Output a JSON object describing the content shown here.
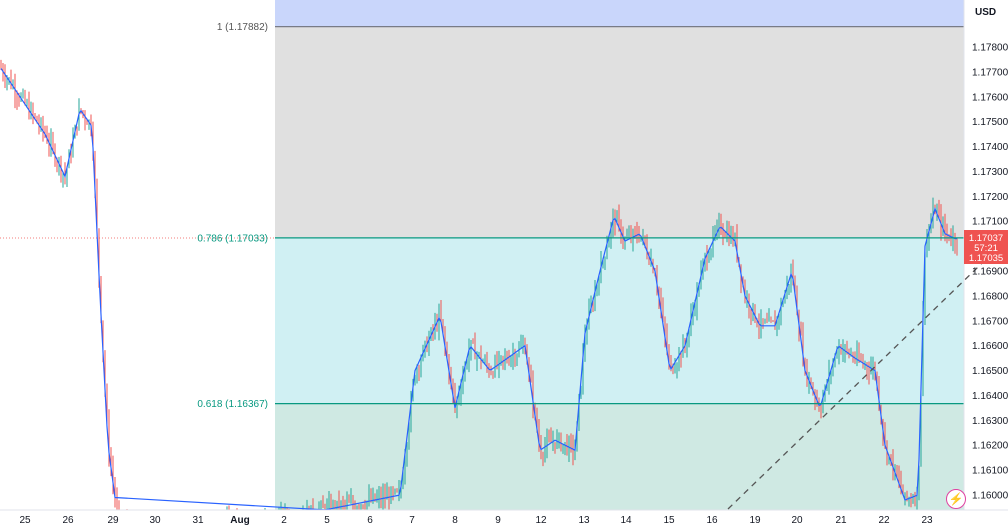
{
  "chart_data": {
    "type": "candlestick",
    "currency": "USD",
    "y_axis_ticks": [
      "1.17800",
      "1.17700",
      "1.17600",
      "1.17500",
      "1.17400",
      "1.17300",
      "1.17200",
      "1.17100",
      "1.16900",
      "1.16800",
      "1.16700",
      "1.16600",
      "1.16500",
      "1.16400",
      "1.16300",
      "1.16200",
      "1.16100",
      "1.16000"
    ],
    "x_axis_ticks": [
      "25",
      "26",
      "29",
      "30",
      "31",
      "Aug",
      "2",
      "5",
      "6",
      "7",
      "8",
      "9",
      "12",
      "13",
      "14",
      "15",
      "16",
      "19",
      "20",
      "21",
      "22",
      "23"
    ],
    "ylim": [
      1.1596,
      1.1796
    ],
    "fib_levels": [
      {
        "label": "1 (1.17882)",
        "value": 1.17882
      },
      {
        "label": "0.786 (1.17033)",
        "value": 1.17033
      },
      {
        "label": "0.618 (1.16367)",
        "value": 1.16367
      }
    ],
    "last_price": "1.17037",
    "countdown": "57:21",
    "bid_price": "1.17035",
    "colors": {
      "up": "#26a69a",
      "down": "#ef5350",
      "ma": "#2962ff",
      "fib_line": "#089981",
      "zone_top": "#c9d6fb",
      "zone_grey": "#e0e0e0",
      "zone_cyan": "#d0f0f3",
      "zone_green": "#cfe9e3"
    }
  },
  "bolt_icon": "⚡"
}
